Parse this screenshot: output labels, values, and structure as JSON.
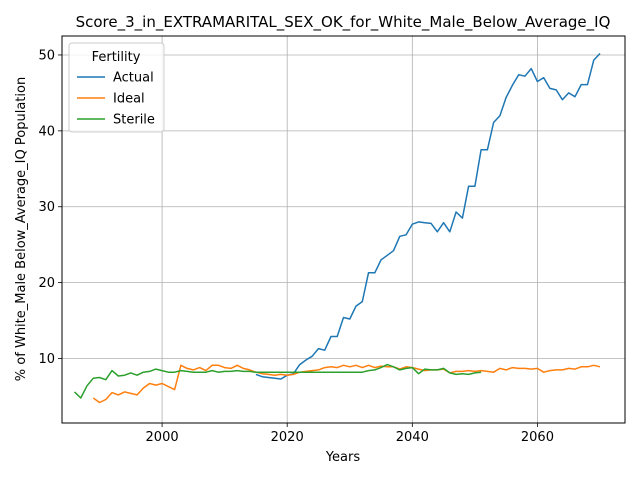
{
  "chart_data": {
    "type": "line",
    "title": "Score_3_in_EXTRAMARITAL_SEX_OK_for_White_Male_Below_Average_IQ",
    "xlabel": "Years",
    "ylabel": "% of White_Male Below_Average_IQ Population",
    "xlim": [
      1984,
      2074
    ],
    "ylim": [
      1.5,
      52.5
    ],
    "xticks": [
      2000,
      2020,
      2040,
      2060
    ],
    "yticks": [
      10,
      20,
      30,
      40,
      50
    ],
    "grid": true,
    "legend": {
      "title": "Fertility",
      "placement": "top-left"
    },
    "series": [
      {
        "name": "Actual",
        "color": "#1f77b4",
        "x": [
          2015,
          2016,
          2017,
          2018,
          2019,
          2020,
          2021,
          2022,
          2023,
          2024,
          2025,
          2026,
          2027,
          2028,
          2029,
          2030,
          2031,
          2032,
          2033,
          2034,
          2035,
          2036,
          2037,
          2038,
          2039,
          2040,
          2041,
          2042,
          2043,
          2044,
          2045,
          2046,
          2047,
          2048,
          2049,
          2050,
          2051,
          2052,
          2053,
          2054,
          2055,
          2056,
          2057,
          2058,
          2059,
          2060,
          2061,
          2062,
          2063,
          2064,
          2065,
          2066,
          2067,
          2068,
          2069,
          2070
        ],
        "values": [
          7.9,
          7.6,
          7.5,
          7.4,
          7.3,
          7.8,
          8.0,
          9.2,
          9.8,
          10.3,
          11.3,
          11.1,
          12.9,
          12.9,
          15.4,
          15.2,
          16.9,
          17.5,
          21.3,
          21.3,
          23.0,
          23.6,
          24.2,
          26.1,
          26.3,
          27.7,
          28.0,
          27.9,
          27.8,
          26.7,
          27.9,
          26.7,
          29.3,
          28.5,
          32.7,
          32.7,
          37.5,
          37.5,
          41.1,
          42.0,
          44.4,
          46.0,
          47.4,
          47.2,
          48.2,
          46.5,
          47.0,
          45.6,
          45.4,
          44.1,
          45.0,
          44.5,
          46.1,
          46.1,
          49.3,
          50.2
        ]
      },
      {
        "name": "Ideal",
        "color": "#ff7f0e",
        "x": [
          1989,
          1990,
          1991,
          1992,
          1993,
          1994,
          1995,
          1996,
          1997,
          1998,
          1999,
          2000,
          2001,
          2002,
          2003,
          2004,
          2005,
          2006,
          2007,
          2008,
          2009,
          2010,
          2011,
          2012,
          2013,
          2014,
          2015,
          2016,
          2017,
          2018,
          2019,
          2020,
          2021,
          2022,
          2023,
          2024,
          2025,
          2026,
          2027,
          2028,
          2029,
          2030,
          2031,
          2032,
          2033,
          2034,
          2035,
          2036,
          2037,
          2038,
          2039,
          2040,
          2041,
          2042,
          2043,
          2044,
          2045,
          2046,
          2047,
          2048,
          2049,
          2050,
          2051,
          2052,
          2053,
          2054,
          2055,
          2056,
          2057,
          2058,
          2059,
          2060,
          2061,
          2062,
          2063,
          2064,
          2065,
          2066,
          2067,
          2068,
          2069,
          2070
        ],
        "values": [
          4.8,
          4.2,
          4.6,
          5.5,
          5.2,
          5.6,
          5.4,
          5.2,
          6.1,
          6.7,
          6.5,
          6.7,
          6.3,
          5.9,
          9.1,
          8.7,
          8.5,
          8.8,
          8.4,
          9.1,
          9.1,
          8.8,
          8.7,
          9.1,
          8.7,
          8.5,
          8.2,
          8.0,
          7.9,
          7.8,
          7.9,
          7.8,
          7.9,
          8.2,
          8.3,
          8.4,
          8.5,
          8.8,
          8.9,
          8.8,
          9.1,
          8.9,
          9.1,
          8.8,
          9.1,
          8.8,
          9.0,
          8.9,
          8.9,
          8.6,
          8.9,
          8.8,
          8.6,
          8.4,
          8.5,
          8.5,
          8.6,
          8.1,
          8.3,
          8.3,
          8.4,
          8.3,
          8.4,
          8.3,
          8.2,
          8.7,
          8.5,
          8.8,
          8.7,
          8.7,
          8.6,
          8.7,
          8.2,
          8.4,
          8.5,
          8.5,
          8.7,
          8.6,
          8.9,
          8.9,
          9.1,
          8.9
        ]
      },
      {
        "name": "Sterile",
        "color": "#2ca02c",
        "x": [
          1986,
          1987,
          1988,
          1989,
          1990,
          1991,
          1992,
          1993,
          1994,
          1995,
          1996,
          1997,
          1998,
          1999,
          2000,
          2001,
          2002,
          2003,
          2004,
          2005,
          2006,
          2007,
          2008,
          2009,
          2010,
          2011,
          2012,
          2013,
          2014,
          2015,
          2016,
          2017,
          2018,
          2019,
          2020,
          2021,
          2022,
          2023,
          2024,
          2025,
          2026,
          2027,
          2028,
          2029,
          2030,
          2031,
          2032,
          2033,
          2034,
          2035,
          2036,
          2037,
          2038,
          2039,
          2040,
          2041,
          2042,
          2043,
          2044,
          2045,
          2046,
          2047,
          2048,
          2049,
          2050,
          2051
        ],
        "values": [
          5.6,
          4.8,
          6.4,
          7.4,
          7.5,
          7.2,
          8.4,
          7.7,
          7.8,
          8.1,
          7.8,
          8.2,
          8.3,
          8.6,
          8.4,
          8.2,
          8.2,
          8.4,
          8.3,
          8.2,
          8.2,
          8.2,
          8.4,
          8.2,
          8.3,
          8.3,
          8.4,
          8.3,
          8.3,
          8.2,
          8.2,
          8.2,
          8.2,
          8.2,
          8.2,
          8.2,
          8.2,
          8.2,
          8.2,
          8.2,
          8.2,
          8.2,
          8.2,
          8.2,
          8.2,
          8.2,
          8.2,
          8.4,
          8.5,
          8.8,
          9.2,
          8.9,
          8.5,
          8.7,
          8.8,
          8.0,
          8.6,
          8.5,
          8.5,
          8.7,
          8.1,
          7.9,
          8.0,
          7.9,
          8.1,
          8.2
        ]
      }
    ]
  }
}
